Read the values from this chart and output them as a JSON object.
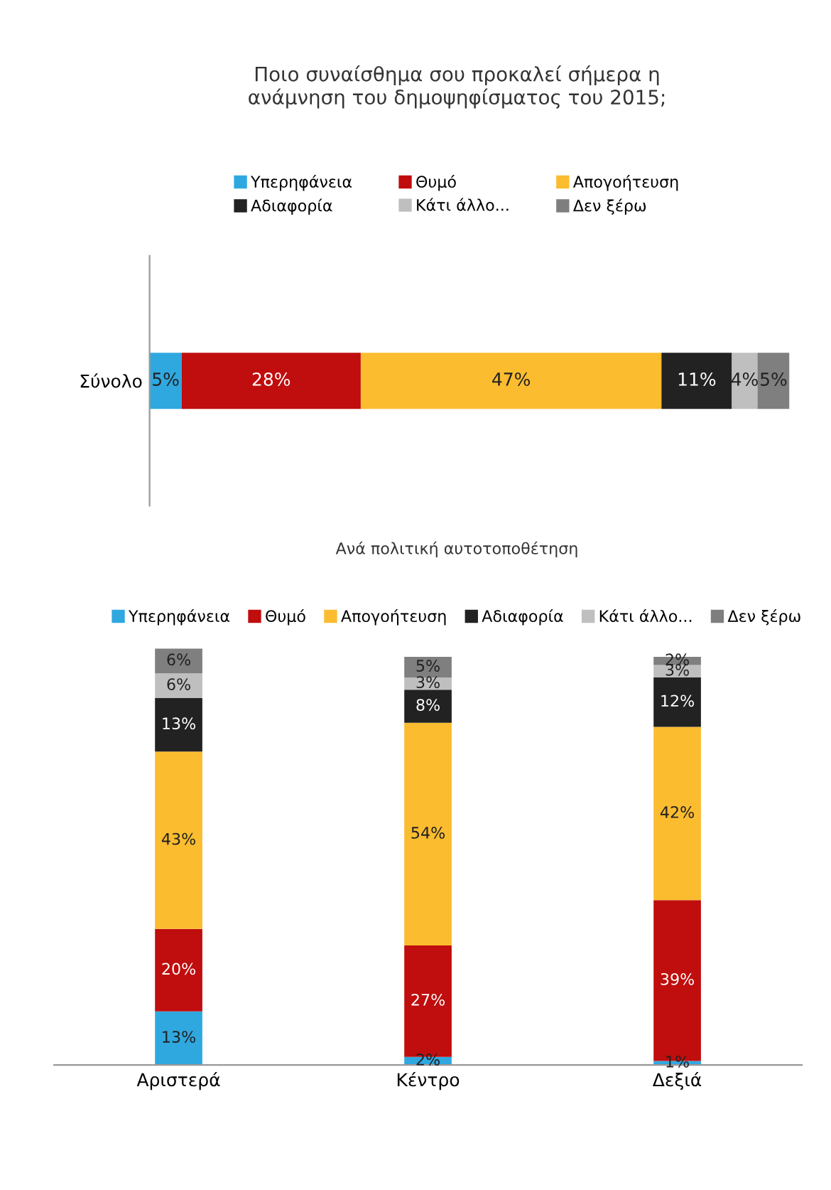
{
  "chart_data": [
    {
      "type": "bar",
      "title": "Ποιο συναίσθημα σου προκαλεί σήμερα η\nανάμνηση του δημοψηφίσματος του 2015;",
      "orientation": "horizontal",
      "stacked": true,
      "legend": "top",
      "grid": false,
      "categories": [
        "Σύνολο"
      ],
      "series": [
        {
          "name": "Υπερηφάνεια",
          "color": "#2fa8e0",
          "values": [
            5
          ],
          "value_labels": [
            "5%"
          ]
        },
        {
          "name": "Θυμό",
          "color": "#c00d0d",
          "values": [
            28
          ],
          "value_labels": [
            "28%"
          ]
        },
        {
          "name": "Απογοήτευση",
          "color": "#fbbc2f",
          "values": [
            47
          ],
          "value_labels": [
            "47%"
          ]
        },
        {
          "name": "Αδιαφορία",
          "color": "#222222",
          "values": [
            11
          ],
          "value_labels": [
            "11%"
          ]
        },
        {
          "name": "Κάτι άλλο...",
          "color": "#bfbfbf",
          "values": [
            4
          ],
          "value_labels": [
            "4%"
          ]
        },
        {
          "name": "Δεν ξέρω",
          "color": "#7f7f7f",
          "values": [
            5
          ],
          "value_labels": [
            "5%"
          ]
        }
      ]
    },
    {
      "type": "bar",
      "title": "Ανά πολιτική αυτοτοποθέτηση",
      "stacked": true,
      "legend": "top",
      "grid": false,
      "categories": [
        "Αριστερά",
        "Κέντρο",
        "Δεξιά"
      ],
      "series": [
        {
          "name": "Υπερηφάνεια",
          "color": "#2fa8e0",
          "values": [
            13,
            2,
            1
          ],
          "value_labels": [
            "13%",
            "2%",
            "1%"
          ]
        },
        {
          "name": "Θυμό",
          "color": "#c00d0d",
          "values": [
            20,
            27,
            39
          ],
          "value_labels": [
            "20%",
            "27%",
            "39%"
          ]
        },
        {
          "name": "Απογοήτευση",
          "color": "#fbbc2f",
          "values": [
            43,
            54,
            42
          ],
          "value_labels": [
            "43%",
            "54%",
            "42%"
          ]
        },
        {
          "name": "Αδιαφορία",
          "color": "#222222",
          "values": [
            13,
            8,
            12
          ],
          "value_labels": [
            "13%",
            "8%",
            "12%"
          ]
        },
        {
          "name": "Κάτι άλλο...",
          "color": "#bfbfbf",
          "values": [
            6,
            3,
            3
          ],
          "value_labels": [
            "6%",
            "3%",
            "3%"
          ]
        },
        {
          "name": "Δεν ξέρω",
          "color": "#7f7f7f",
          "values": [
            6,
            5,
            2
          ],
          "value_labels": [
            "6%",
            "5%",
            "2%"
          ]
        }
      ]
    }
  ]
}
